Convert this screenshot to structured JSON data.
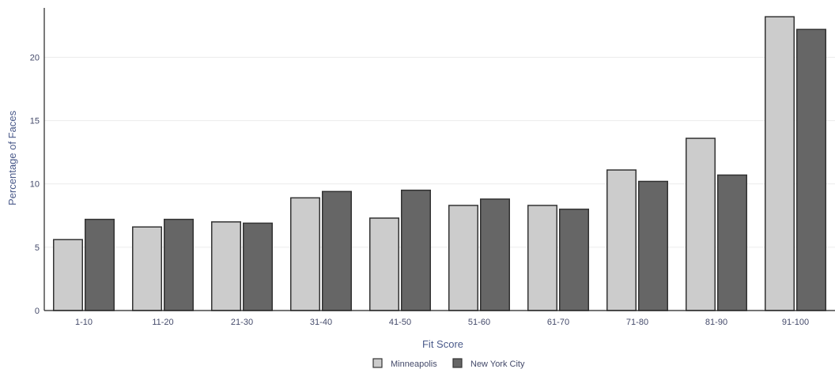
{
  "chart_data": {
    "type": "bar",
    "title": "",
    "xlabel": "Fit Score",
    "ylabel": "Percentage of Faces",
    "categories": [
      "1-10",
      "11-20",
      "21-30",
      "31-40",
      "41-50",
      "51-60",
      "61-70",
      "71-80",
      "81-90",
      "91-100"
    ],
    "series": [
      {
        "name": "Minneapolis",
        "color": "#cccccc",
        "values": [
          5.6,
          6.6,
          7.0,
          8.9,
          7.3,
          8.3,
          8.3,
          11.1,
          13.6,
          23.2
        ]
      },
      {
        "name": "New York City",
        "color": "#666666",
        "values": [
          7.2,
          7.2,
          6.9,
          9.4,
          9.5,
          8.8,
          8.0,
          10.2,
          10.7,
          22.2
        ]
      }
    ],
    "ylim": [
      0,
      23.9
    ],
    "yticks": [
      0,
      5,
      10,
      15,
      20
    ],
    "grid": true,
    "legend_position": "bottom-center"
  }
}
